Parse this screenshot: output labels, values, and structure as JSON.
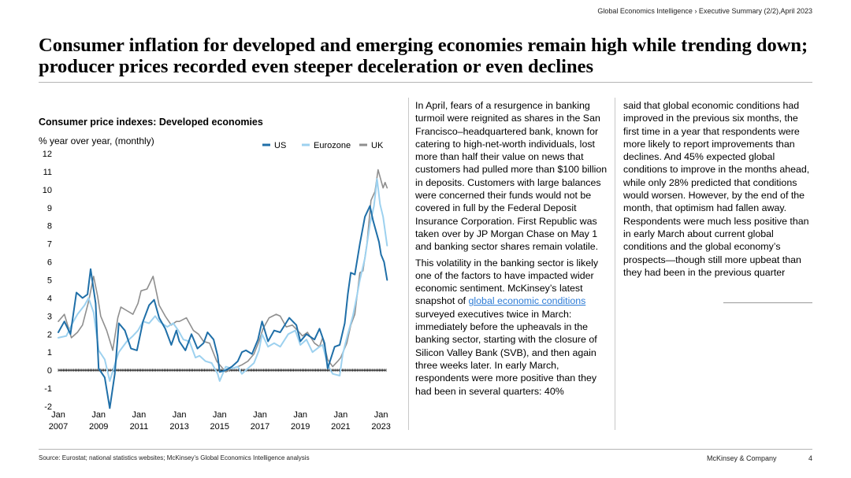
{
  "header": {
    "breadcrumb": "Global Economics Intelligence › Executive Summary (2/2),April 2023",
    "title": "Consumer inflation for developed and emerging economies remain high while trending down; producer prices recorded even steeper deceleration or even declines"
  },
  "chart_data": {
    "type": "line",
    "title": "Consumer price indexes: Developed economies",
    "ylabel": "% year over year, (monthly)",
    "ylim": [
      -2,
      12
    ],
    "yticks": [
      -2,
      -1,
      0,
      1,
      2,
      3,
      4,
      5,
      6,
      7,
      8,
      9,
      10,
      11,
      12
    ],
    "xlim": [
      2007.0,
      2023.25
    ],
    "xticks": [
      {
        "x": 2007,
        "line1": "Jan",
        "line2": "2007"
      },
      {
        "x": 2009,
        "line1": "Jan",
        "line2": "2009"
      },
      {
        "x": 2011,
        "line1": "Jan",
        "line2": "2011"
      },
      {
        "x": 2013,
        "line1": "Jan",
        "line2": "2013"
      },
      {
        "x": 2015,
        "line1": "Jan",
        "line2": "2015"
      },
      {
        "x": 2017,
        "line1": "Jan",
        "line2": "2017"
      },
      {
        "x": 2019,
        "line1": "Jan",
        "line2": "2019"
      },
      {
        "x": 2021,
        "line1": "Jan",
        "line2": "2021"
      },
      {
        "x": 2023,
        "line1": "Jan",
        "line2": "2023"
      }
    ],
    "legend_position": "top-right",
    "series": [
      {
        "name": "US",
        "color": "#1f6fa8",
        "width": 2.0,
        "points": [
          [
            2007.0,
            2.1
          ],
          [
            2007.3,
            2.7
          ],
          [
            2007.6,
            2.0
          ],
          [
            2007.9,
            4.3
          ],
          [
            2008.2,
            4.0
          ],
          [
            2008.45,
            4.2
          ],
          [
            2008.6,
            5.6
          ],
          [
            2008.85,
            3.7
          ],
          [
            2009.0,
            0.1
          ],
          [
            2009.3,
            -0.4
          ],
          [
            2009.55,
            -2.1
          ],
          [
            2009.8,
            -0.2
          ],
          [
            2010.0,
            2.6
          ],
          [
            2010.3,
            2.2
          ],
          [
            2010.6,
            1.2
          ],
          [
            2010.9,
            1.1
          ],
          [
            2011.2,
            2.7
          ],
          [
            2011.5,
            3.6
          ],
          [
            2011.75,
            3.9
          ],
          [
            2012.0,
            2.9
          ],
          [
            2012.3,
            2.3
          ],
          [
            2012.6,
            1.4
          ],
          [
            2012.85,
            2.2
          ],
          [
            2013.0,
            1.6
          ],
          [
            2013.3,
            1.1
          ],
          [
            2013.6,
            2.0
          ],
          [
            2013.9,
            1.2
          ],
          [
            2014.2,
            1.5
          ],
          [
            2014.4,
            2.1
          ],
          [
            2014.7,
            1.7
          ],
          [
            2014.9,
            0.8
          ],
          [
            2015.0,
            -0.1
          ],
          [
            2015.3,
            0.0
          ],
          [
            2015.6,
            0.2
          ],
          [
            2015.9,
            0.5
          ],
          [
            2016.1,
            1.0
          ],
          [
            2016.3,
            1.1
          ],
          [
            2016.6,
            0.9
          ],
          [
            2016.9,
            1.7
          ],
          [
            2017.1,
            2.7
          ],
          [
            2017.4,
            1.6
          ],
          [
            2017.7,
            2.2
          ],
          [
            2018.0,
            2.1
          ],
          [
            2018.45,
            2.9
          ],
          [
            2018.8,
            2.5
          ],
          [
            2019.0,
            1.6
          ],
          [
            2019.3,
            2.0
          ],
          [
            2019.7,
            1.7
          ],
          [
            2019.95,
            2.3
          ],
          [
            2020.2,
            1.5
          ],
          [
            2020.35,
            0.1
          ],
          [
            2020.7,
            1.3
          ],
          [
            2020.95,
            1.4
          ],
          [
            2021.2,
            2.6
          ],
          [
            2021.35,
            4.2
          ],
          [
            2021.5,
            5.4
          ],
          [
            2021.7,
            5.3
          ],
          [
            2021.95,
            7.0
          ],
          [
            2022.2,
            8.5
          ],
          [
            2022.45,
            9.1
          ],
          [
            2022.6,
            8.3
          ],
          [
            2022.9,
            7.1
          ],
          [
            2023.0,
            6.4
          ],
          [
            2023.15,
            6.0
          ],
          [
            2023.3,
            5.0
          ]
        ]
      },
      {
        "name": "Eurozone",
        "color": "#9dd1ef",
        "width": 2.0,
        "points": [
          [
            2007.0,
            1.8
          ],
          [
            2007.4,
            1.9
          ],
          [
            2007.7,
            2.6
          ],
          [
            2007.95,
            3.1
          ],
          [
            2008.3,
            3.6
          ],
          [
            2008.5,
            4.0
          ],
          [
            2008.75,
            3.2
          ],
          [
            2009.0,
            1.1
          ],
          [
            2009.3,
            0.6
          ],
          [
            2009.55,
            -0.6
          ],
          [
            2009.85,
            0.5
          ],
          [
            2010.0,
            1.0
          ],
          [
            2010.4,
            1.6
          ],
          [
            2010.7,
            1.9
          ],
          [
            2010.95,
            2.2
          ],
          [
            2011.2,
            2.7
          ],
          [
            2011.5,
            2.6
          ],
          [
            2011.8,
            3.0
          ],
          [
            2012.0,
            2.7
          ],
          [
            2012.4,
            2.4
          ],
          [
            2012.7,
            2.6
          ],
          [
            2012.95,
            2.2
          ],
          [
            2013.2,
            1.7
          ],
          [
            2013.5,
            1.6
          ],
          [
            2013.8,
            0.7
          ],
          [
            2014.0,
            0.8
          ],
          [
            2014.3,
            0.5
          ],
          [
            2014.6,
            0.4
          ],
          [
            2014.9,
            -0.2
          ],
          [
            2015.0,
            -0.6
          ],
          [
            2015.3,
            0.2
          ],
          [
            2015.6,
            0.1
          ],
          [
            2015.9,
            0.2
          ],
          [
            2016.1,
            -0.2
          ],
          [
            2016.4,
            0.1
          ],
          [
            2016.7,
            0.4
          ],
          [
            2016.95,
            1.1
          ],
          [
            2017.1,
            2.0
          ],
          [
            2017.4,
            1.3
          ],
          [
            2017.7,
            1.5
          ],
          [
            2018.0,
            1.3
          ],
          [
            2018.4,
            2.0
          ],
          [
            2018.75,
            2.2
          ],
          [
            2019.0,
            1.4
          ],
          [
            2019.3,
            1.7
          ],
          [
            2019.6,
            1.0
          ],
          [
            2019.95,
            1.3
          ],
          [
            2020.1,
            1.4
          ],
          [
            2020.35,
            0.3
          ],
          [
            2020.6,
            -0.2
          ],
          [
            2020.95,
            -0.3
          ],
          [
            2021.1,
            0.9
          ],
          [
            2021.35,
            2.0
          ],
          [
            2021.6,
            3.0
          ],
          [
            2021.8,
            4.1
          ],
          [
            2021.95,
            5.0
          ],
          [
            2022.2,
            6.2
          ],
          [
            2022.45,
            8.1
          ],
          [
            2022.65,
            9.1
          ],
          [
            2022.8,
            10.6
          ],
          [
            2022.95,
            9.2
          ],
          [
            2023.1,
            8.5
          ],
          [
            2023.3,
            6.9
          ]
        ]
      },
      {
        "name": "UK",
        "color": "#8f8f8f",
        "width": 1.6,
        "points": [
          [
            2007.0,
            2.7
          ],
          [
            2007.3,
            3.1
          ],
          [
            2007.65,
            1.8
          ],
          [
            2007.95,
            2.1
          ],
          [
            2008.2,
            2.5
          ],
          [
            2008.5,
            3.8
          ],
          [
            2008.75,
            5.2
          ],
          [
            2008.95,
            4.1
          ],
          [
            2009.1,
            3.0
          ],
          [
            2009.4,
            2.2
          ],
          [
            2009.7,
            1.1
          ],
          [
            2009.95,
            2.9
          ],
          [
            2010.1,
            3.5
          ],
          [
            2010.4,
            3.3
          ],
          [
            2010.7,
            3.1
          ],
          [
            2010.95,
            3.7
          ],
          [
            2011.1,
            4.4
          ],
          [
            2011.4,
            4.5
          ],
          [
            2011.7,
            5.2
          ],
          [
            2012.0,
            3.6
          ],
          [
            2012.3,
            3.0
          ],
          [
            2012.6,
            2.5
          ],
          [
            2012.85,
            2.7
          ],
          [
            2013.0,
            2.7
          ],
          [
            2013.35,
            2.9
          ],
          [
            2013.7,
            2.2
          ],
          [
            2013.95,
            2.0
          ],
          [
            2014.2,
            1.6
          ],
          [
            2014.5,
            1.5
          ],
          [
            2014.85,
            0.5
          ],
          [
            2015.0,
            0.3
          ],
          [
            2015.3,
            -0.1
          ],
          [
            2015.6,
            0.1
          ],
          [
            2015.9,
            0.2
          ],
          [
            2016.1,
            0.3
          ],
          [
            2016.4,
            0.5
          ],
          [
            2016.7,
            0.9
          ],
          [
            2016.95,
            1.6
          ],
          [
            2017.15,
            2.3
          ],
          [
            2017.45,
            2.9
          ],
          [
            2017.8,
            3.1
          ],
          [
            2018.0,
            3.0
          ],
          [
            2018.3,
            2.4
          ],
          [
            2018.6,
            2.5
          ],
          [
            2018.95,
            2.1
          ],
          [
            2019.1,
            1.9
          ],
          [
            2019.35,
            2.1
          ],
          [
            2019.7,
            1.5
          ],
          [
            2019.95,
            1.3
          ],
          [
            2020.1,
            1.8
          ],
          [
            2020.35,
            0.6
          ],
          [
            2020.6,
            0.2
          ],
          [
            2020.85,
            0.5
          ],
          [
            2021.0,
            0.7
          ],
          [
            2021.3,
            1.5
          ],
          [
            2021.5,
            2.5
          ],
          [
            2021.7,
            3.1
          ],
          [
            2021.95,
            5.4
          ],
          [
            2022.1,
            5.5
          ],
          [
            2022.3,
            7.0
          ],
          [
            2022.5,
            9.4
          ],
          [
            2022.7,
            9.9
          ],
          [
            2022.85,
            11.1
          ],
          [
            2023.0,
            10.5
          ],
          [
            2023.1,
            10.1
          ],
          [
            2023.2,
            10.4
          ],
          [
            2023.3,
            10.1
          ]
        ]
      }
    ]
  },
  "text": {
    "col1_p1": "In April, fears of a resurgence in banking turmoil were reignited as shares in the San Francisco–headquartered bank, known for catering to high-net-worth individuals, lost more than half their value on news that customers had pulled more than $100 billion in deposits. Customers with large balances were concerned their funds would not be covered in full by the Federal Deposit Insurance Corporation. First Republic was taken over by JP Morgan Chase on May 1 and banking sector shares remain volatile.",
    "col1_p2_a": "This volatility in the banking sector is likely one of the factors to have impacted wider economic sentiment. McKinsey’s latest snapshot of ",
    "col1_p2_link": "global economic conditions",
    "col1_p2_b": " surveyed executives twice in March: immediately before the upheavals in the banking sector, starting with the closure of Silicon Valley Bank (SVB), and then again three weeks later. In early March, respondents were more positive than they had been in several quarters: 40%",
    "col2_p1": "said that global economic conditions had improved in the previous six months, the first time in a year that respondents were more likely to report improvements than declines. And 45% expected global conditions to improve in the months ahead, while only 28% predicted that conditions would worsen. However, by the end of the month, that optimism had fallen away. Respondents were much less positive than in early March about current global conditions and the global economy’s prospects—though still more upbeat than they had been in the previous quarter"
  },
  "footer": {
    "source": "Source: Eurostat; national statistics websites; McKinsey’s Global Economics Intelligence analysis",
    "brand": "McKinsey & Company",
    "page": "4"
  }
}
